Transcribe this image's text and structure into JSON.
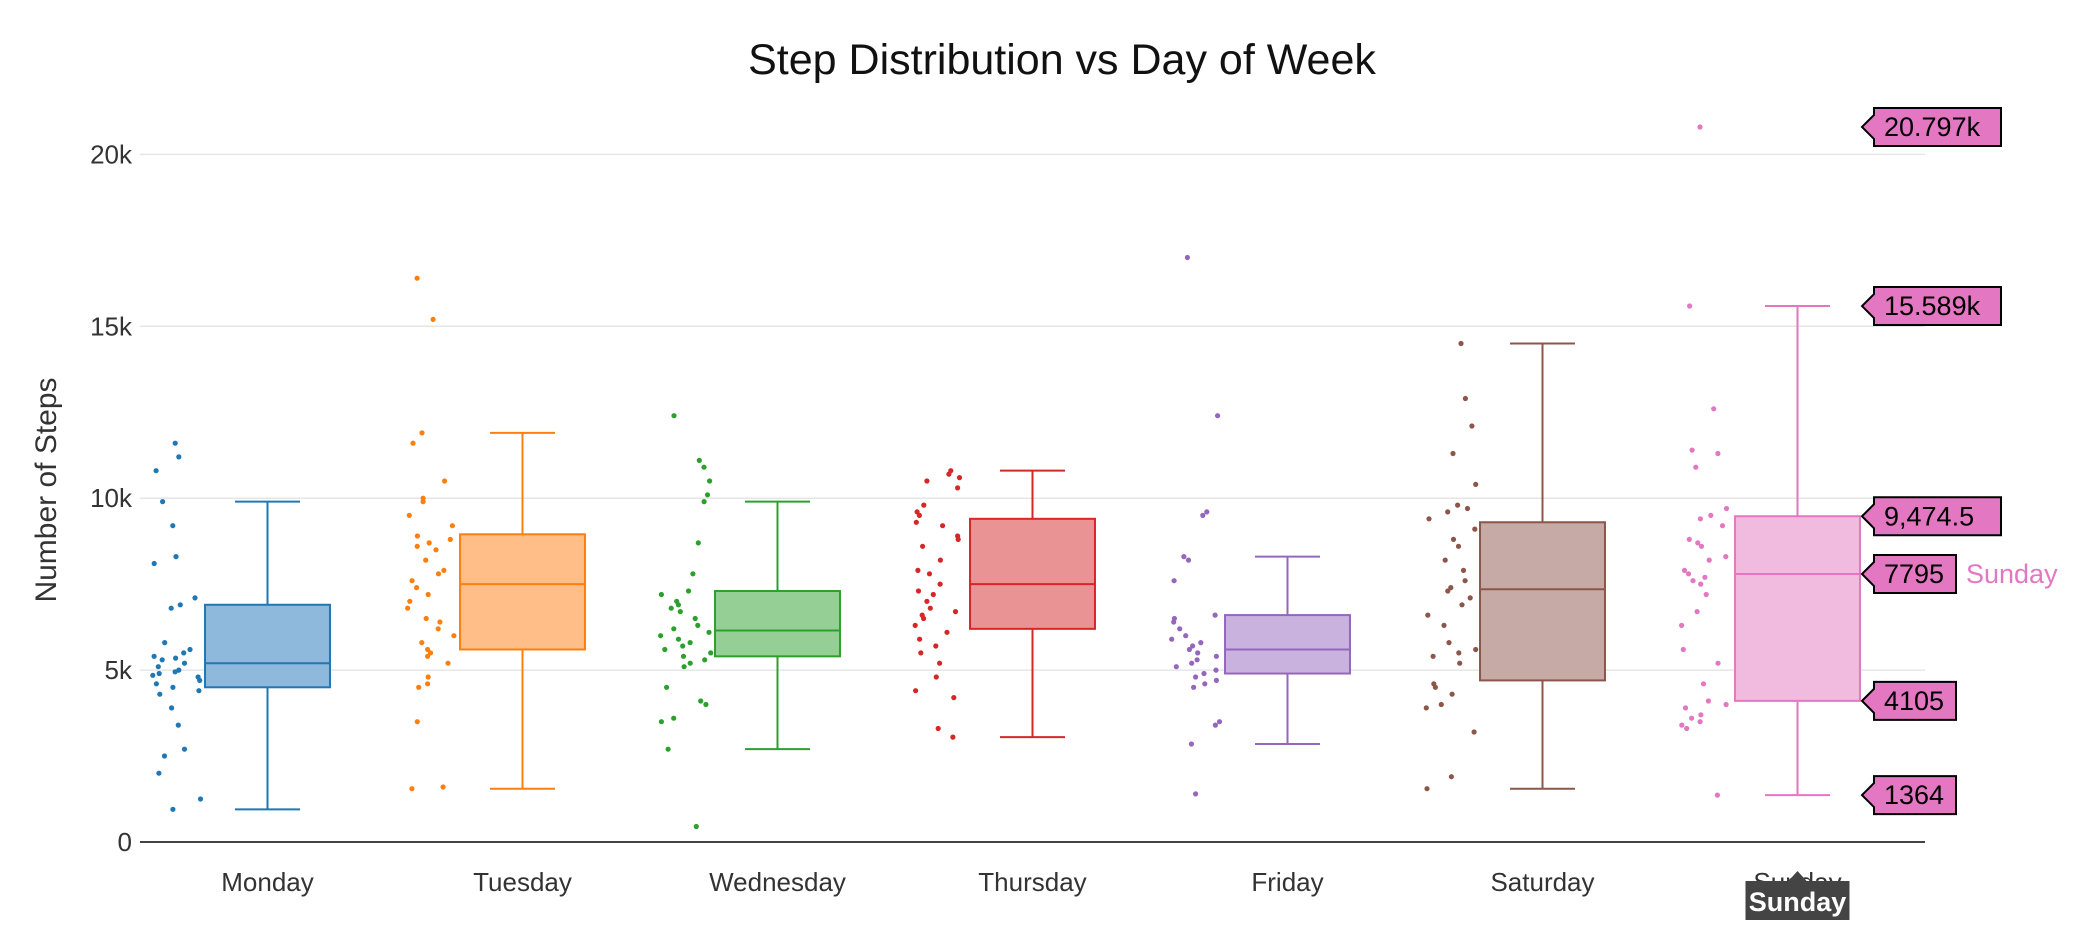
{
  "chart_data": {
    "type": "box",
    "title": "Step Distribution vs Day of Week",
    "xlabel": "",
    "ylabel": "Number of Steps",
    "ylim": [
      0,
      21000
    ],
    "y_ticks": [
      0,
      5000,
      10000,
      15000,
      20000
    ],
    "y_tick_labels": [
      "0",
      "5k",
      "10k",
      "15k",
      "20k"
    ],
    "grid": true,
    "legend": "none",
    "categories": [
      "Monday",
      "Tuesday",
      "Wednesday",
      "Thursday",
      "Friday",
      "Saturday",
      "Sunday"
    ],
    "series": [
      {
        "category": "Monday",
        "color": "#1f77b4",
        "fill": "#8fb9dc",
        "min": 950,
        "q1": 4500,
        "median": 5200,
        "q3": 6900,
        "max": 9900,
        "points": [
          11600,
          11200,
          10800,
          9900,
          9200,
          8300,
          8100,
          7100,
          6900,
          6800,
          5800,
          5600,
          5500,
          5400,
          5350,
          5300,
          5200,
          5100,
          5000,
          4950,
          4900,
          4850,
          4800,
          4700,
          4600,
          4500,
          4400,
          4300,
          3900,
          3400,
          2700,
          2500,
          2000,
          1250,
          950
        ]
      },
      {
        "category": "Tuesday",
        "color": "#ff7f0e",
        "fill": "#ffbd87",
        "min": 1550,
        "q1": 5600,
        "median": 7500,
        "q3": 8950,
        "max": 11900,
        "points": [
          16400,
          15200,
          11900,
          11600,
          10500,
          10000,
          9900,
          9500,
          9200,
          8900,
          8800,
          8700,
          8600,
          8500,
          8200,
          7900,
          7800,
          7600,
          7400,
          7200,
          7000,
          6800,
          6500,
          6400,
          6200,
          6000,
          5800,
          5600,
          5500,
          5400,
          5200,
          4800,
          4600,
          4500,
          3500,
          1600,
          1550
        ]
      },
      {
        "category": "Wednesday",
        "color": "#2ca02c",
        "fill": "#96cf96",
        "min": 2700,
        "q1": 5400,
        "median": 6150,
        "q3": 7300,
        "max": 9900,
        "points": [
          12400,
          11100,
          10900,
          10500,
          10100,
          9900,
          8700,
          7800,
          7300,
          7200,
          7000,
          6900,
          6800,
          6700,
          6500,
          6300,
          6200,
          6100,
          6000,
          5900,
          5800,
          5700,
          5600,
          5500,
          5400,
          5300,
          5200,
          5100,
          4500,
          4100,
          4000,
          3600,
          3500,
          2700,
          450
        ]
      },
      {
        "category": "Thursday",
        "color": "#d62728",
        "fill": "#ea9394",
        "min": 3050,
        "q1": 6200,
        "median": 7500,
        "q3": 9400,
        "max": 10800,
        "points": [
          10800,
          10700,
          10600,
          10500,
          10300,
          9800,
          9600,
          9500,
          9300,
          9200,
          8900,
          8800,
          8600,
          8200,
          7900,
          7800,
          7500,
          7300,
          7200,
          7000,
          6800,
          6700,
          6600,
          6500,
          6300,
          6100,
          5900,
          5700,
          5500,
          5200,
          4800,
          4400,
          4200,
          3300,
          3050
        ]
      },
      {
        "category": "Friday",
        "color": "#9467bd",
        "fill": "#c9b3de",
        "min": 2850,
        "q1": 4900,
        "median": 5600,
        "q3": 6600,
        "max": 8300,
        "points": [
          17000,
          12400,
          9600,
          9500,
          8300,
          8200,
          7600,
          6600,
          6500,
          6400,
          6200,
          6000,
          5900,
          5800,
          5700,
          5600,
          5500,
          5400,
          5300,
          5200,
          5100,
          5000,
          4900,
          4800,
          4700,
          4600,
          4500,
          3500,
          3400,
          2850,
          1400
        ]
      },
      {
        "category": "Saturday",
        "color": "#8c564b",
        "fill": "#c5aaa5",
        "min": 1550,
        "q1": 4700,
        "median": 7350,
        "q3": 9300,
        "max": 14500,
        "points": [
          14500,
          12900,
          12100,
          11300,
          10400,
          9800,
          9700,
          9600,
          9400,
          9100,
          8800,
          8600,
          8200,
          7900,
          7600,
          7400,
          7300,
          7100,
          6900,
          6600,
          6300,
          5800,
          5600,
          5500,
          5400,
          5200,
          4600,
          4500,
          4300,
          4000,
          3900,
          3200,
          1900,
          1550
        ]
      },
      {
        "category": "Sunday",
        "color": "#e377c2",
        "fill": "#f1bbe0",
        "min": 1364,
        "q1": 4105,
        "median": 7795,
        "q3": 9474.5,
        "max": 15589,
        "points": [
          20797,
          15589,
          12600,
          11400,
          11300,
          10900,
          9700,
          9500,
          9400,
          9200,
          8800,
          8700,
          8600,
          8300,
          8200,
          7900,
          7800,
          7700,
          7600,
          7500,
          7200,
          6700,
          6300,
          5600,
          5200,
          4600,
          4100,
          4000,
          3900,
          3700,
          3600,
          3500,
          3400,
          3300,
          1364
        ]
      }
    ],
    "hover": {
      "category": "Sunday",
      "labels": [
        "20.797k",
        "15.589k",
        "9,474.5",
        "7795",
        "4105",
        "1364"
      ],
      "values": [
        20797,
        15589,
        9474.5,
        7795,
        4105,
        1364
      ],
      "name": "Sunday",
      "axis_label": "Sunday"
    }
  }
}
